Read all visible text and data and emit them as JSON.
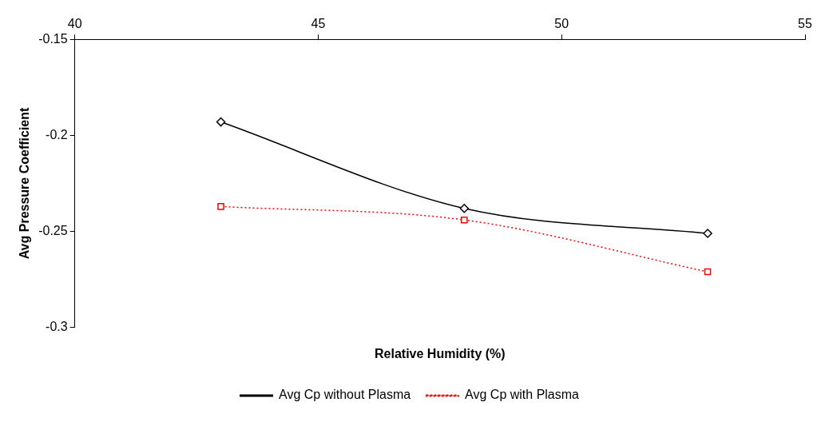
{
  "chart_data": {
    "type": "line",
    "xlabel": "Relative Humidity (%)",
    "ylabel": "Avg Pressure Coefficient",
    "xlim": [
      40,
      55
    ],
    "xticks": [
      40,
      45,
      50,
      55
    ],
    "ylim": [
      -0.3,
      -0.15
    ],
    "yticks": [
      -0.15,
      -0.2,
      -0.25,
      -0.3
    ],
    "x": [
      43,
      48,
      53
    ],
    "series": [
      {
        "name": "Avg Cp without Plasma",
        "color": "#000000",
        "values": [
          -0.193,
          -0.238,
          -0.251
        ],
        "marker": "diamond",
        "line_style": "solid"
      },
      {
        "name": "Avg Cp with Plasma",
        "color": "#ff0000",
        "values": [
          -0.237,
          -0.244,
          -0.271
        ],
        "marker": "square",
        "line_style": "dotted"
      }
    ],
    "grid": false,
    "legend": "bottom"
  }
}
